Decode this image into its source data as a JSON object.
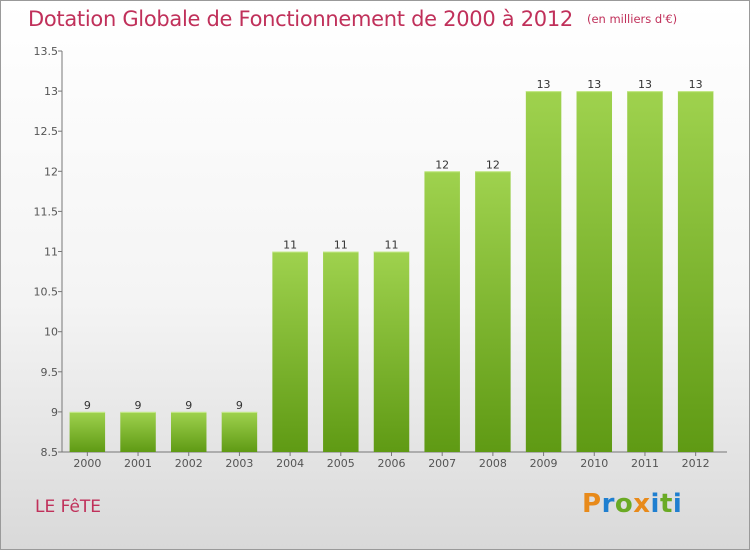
{
  "header": {
    "title": "Dotation Globale de Fonctionnement de 2000 à 2012",
    "subtitle": "(en milliers d'€)"
  },
  "footer": {
    "commune": "LE FêTE",
    "logo_text": "Proxiti"
  },
  "colors": {
    "title": "#c0305a",
    "bar_light": "#9fd24e",
    "bar_dark": "#5f9a14",
    "axis": "#555555"
  },
  "chart_data": {
    "type": "bar",
    "title": "Dotation Globale de Fonctionnement de 2000 à 2012",
    "subtitle": "(en milliers d'€)",
    "categories": [
      "2000",
      "2001",
      "2002",
      "2003",
      "2004",
      "2005",
      "2006",
      "2007",
      "2008",
      "2009",
      "2010",
      "2011",
      "2012"
    ],
    "values": [
      9,
      9,
      9,
      9,
      11,
      11,
      11,
      12,
      12,
      13,
      13,
      13,
      13
    ],
    "data_labels": [
      "9",
      "9",
      "9",
      "9",
      "11",
      "11",
      "11",
      "12",
      "12",
      "13",
      "13",
      "13",
      "13"
    ],
    "ylim": [
      8.5,
      13.5
    ],
    "yticks": [
      "8.5",
      "9",
      "9.5",
      "10",
      "10.5",
      "11",
      "11.5",
      "12",
      "12.5",
      "13",
      "13.5"
    ],
    "ytick_values": [
      8.5,
      9,
      9.5,
      10,
      10.5,
      11,
      11.5,
      12,
      12.5,
      13,
      13.5
    ],
    "xlabel": "",
    "ylabel": "",
    "grid": false,
    "legend": "none"
  }
}
